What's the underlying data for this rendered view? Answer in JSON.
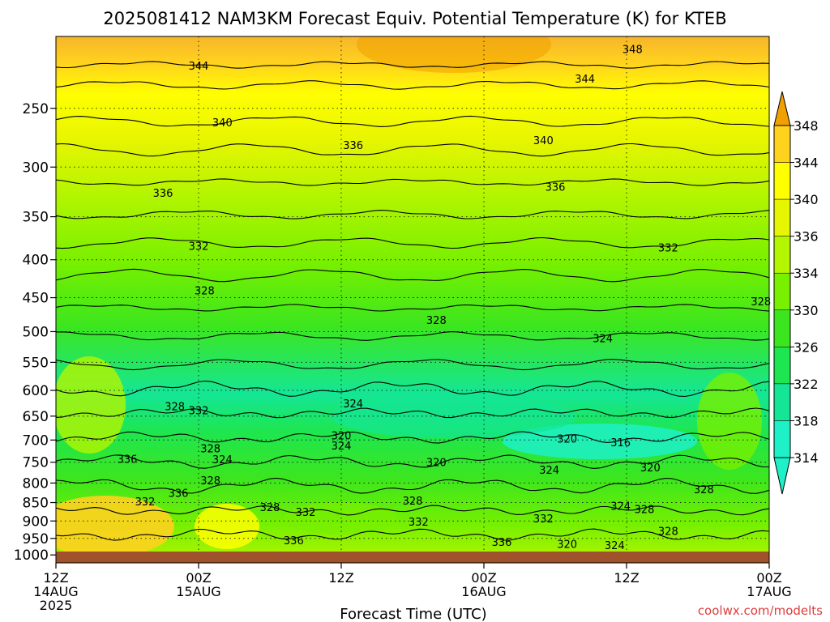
{
  "title": "2025081412 NAM3KM Forecast Equiv. Potential Temperature (K) for KTEB",
  "watermark": "coolwx.com/modelts",
  "chart_data": {
    "type": "heatmap",
    "xlabel": "Forecast Time (UTC)",
    "ylabel": "",
    "x_ticks": [
      {
        "line1": "12Z",
        "line2": "14AUG",
        "line3": "2025",
        "hour": 0
      },
      {
        "line1": "00Z",
        "line2": "15AUG",
        "line3": "",
        "hour": 12
      },
      {
        "line1": "12Z",
        "line2": "",
        "line3": "",
        "hour": 24
      },
      {
        "line1": "00Z",
        "line2": "16AUG",
        "line3": "",
        "hour": 36
      },
      {
        "line1": "12Z",
        "line2": "",
        "line3": "",
        "hour": 48
      },
      {
        "line1": "00Z",
        "line2": "17AUG",
        "line3": "",
        "hour": 60
      }
    ],
    "x_range_hours": [
      0,
      60
    ],
    "y_ticks_hpa": [
      250,
      300,
      350,
      400,
      450,
      500,
      550,
      600,
      650,
      700,
      750,
      800,
      850,
      900,
      950,
      1000
    ],
    "y_range_hpa": [
      200,
      1025
    ],
    "y_scale": "log-pressure",
    "grid": true,
    "colorbar": {
      "levels": [
        314,
        318,
        322,
        326,
        330,
        334,
        336,
        340,
        344,
        348
      ],
      "colors": [
        "#1ef0c8",
        "#14e696",
        "#1ee650",
        "#3ce61e",
        "#78f000",
        "#b4f500",
        "#e6f500",
        "#ffff00",
        "#ffd21e",
        "#f0a000"
      ],
      "placement": "right"
    },
    "contour_labels": [
      {
        "value": "348",
        "hour": 48.5,
        "hpa": 208
      },
      {
        "value": "344",
        "hour": 12.0,
        "hpa": 219
      },
      {
        "value": "344",
        "hour": 44.5,
        "hpa": 228
      },
      {
        "value": "340",
        "hour": 14.0,
        "hpa": 261
      },
      {
        "value": "340",
        "hour": 41.0,
        "hpa": 276
      },
      {
        "value": "336",
        "hour": 25.0,
        "hpa": 280
      },
      {
        "value": "336",
        "hour": 42.0,
        "hpa": 319
      },
      {
        "value": "336",
        "hour": 9.0,
        "hpa": 325
      },
      {
        "value": "332",
        "hour": 12.0,
        "hpa": 383
      },
      {
        "value": "332",
        "hour": 51.5,
        "hpa": 385
      },
      {
        "value": "328",
        "hour": 12.5,
        "hpa": 440
      },
      {
        "value": "328",
        "hour": 32.0,
        "hpa": 482
      },
      {
        "value": "328",
        "hour": 59.3,
        "hpa": 455
      },
      {
        "value": "324",
        "hour": 46.0,
        "hpa": 510
      },
      {
        "value": "324",
        "hour": 25.0,
        "hpa": 625
      },
      {
        "value": "328",
        "hour": 10.0,
        "hpa": 630
      },
      {
        "value": "332",
        "hour": 12.0,
        "hpa": 638
      },
      {
        "value": "320",
        "hour": 24.0,
        "hpa": 690
      },
      {
        "value": "320",
        "hour": 43.0,
        "hpa": 697
      },
      {
        "value": "316",
        "hour": 47.5,
        "hpa": 705
      },
      {
        "value": "324",
        "hour": 24.0,
        "hpa": 712
      },
      {
        "value": "328",
        "hour": 13.0,
        "hpa": 718
      },
      {
        "value": "324",
        "hour": 14.0,
        "hpa": 743
      },
      {
        "value": "336",
        "hour": 6.0,
        "hpa": 742
      },
      {
        "value": "320",
        "hour": 32.0,
        "hpa": 750
      },
      {
        "value": "324",
        "hour": 41.5,
        "hpa": 768
      },
      {
        "value": "320",
        "hour": 50.0,
        "hpa": 762
      },
      {
        "value": "328",
        "hour": 13.0,
        "hpa": 793
      },
      {
        "value": "328",
        "hour": 54.5,
        "hpa": 815
      },
      {
        "value": "336",
        "hour": 10.3,
        "hpa": 825
      },
      {
        "value": "332",
        "hour": 7.5,
        "hpa": 847
      },
      {
        "value": "328",
        "hour": 30.0,
        "hpa": 845
      },
      {
        "value": "328",
        "hour": 18.0,
        "hpa": 862
      },
      {
        "value": "332",
        "hour": 21.0,
        "hpa": 875
      },
      {
        "value": "324",
        "hour": 47.5,
        "hpa": 858
      },
      {
        "value": "328",
        "hour": 49.5,
        "hpa": 867
      },
      {
        "value": "332",
        "hour": 30.5,
        "hpa": 902
      },
      {
        "value": "332",
        "hour": 41.0,
        "hpa": 893
      },
      {
        "value": "328",
        "hour": 51.5,
        "hpa": 928
      },
      {
        "value": "336",
        "hour": 20.0,
        "hpa": 955
      },
      {
        "value": "336",
        "hour": 37.5,
        "hpa": 960
      },
      {
        "value": "320",
        "hour": 43.0,
        "hpa": 966
      },
      {
        "value": "324",
        "hour": 47.0,
        "hpa": 970
      }
    ]
  }
}
